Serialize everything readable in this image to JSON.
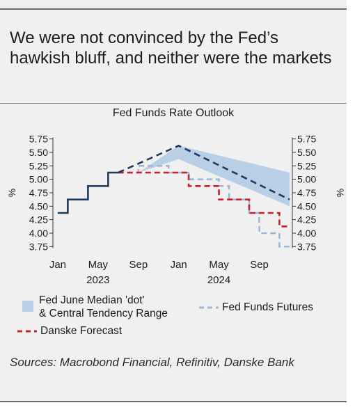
{
  "headline": "We were not convinced by the Fed’s hawkish bluff, and neither were the markets",
  "source_note": "Sources: Macrobond Financial, Refinitiv, Danske Bank",
  "colors": {
    "band": "#b9cfe6",
    "median": "#1f3a5f",
    "futures": "#9fb8d3",
    "danske": "#c8202a",
    "fed_funds": "#1f3a5f"
  },
  "chart_data": {
    "type": "line",
    "title": "Fed Funds Rate Outlook",
    "ylabel": "%",
    "ylim": [
      3.625,
      5.875
    ],
    "yticks": [
      "5.75",
      "5.50",
      "5.25",
      "5.00",
      "4.75",
      "4.50",
      "4.25",
      "4.00",
      "3.75"
    ],
    "xlim": [
      2022.96,
      2024.94
    ],
    "month_ticks": [
      {
        "label": "Jan",
        "x": 2023.0
      },
      {
        "label": "May",
        "x": 2023.333
      },
      {
        "label": "Sep",
        "x": 2023.667
      },
      {
        "label": "Jan",
        "x": 2024.0
      },
      {
        "label": "May",
        "x": 2024.333
      },
      {
        "label": "Sep",
        "x": 2024.667
      }
    ],
    "year_labels": [
      {
        "label": "2023",
        "x": 2023.333
      },
      {
        "label": "2024",
        "x": 2024.333
      }
    ],
    "series": [
      {
        "key": "fed_funds",
        "style": "solid",
        "points": [
          [
            2023.0,
            4.375
          ],
          [
            2023.083,
            4.375
          ],
          [
            2023.083,
            4.625
          ],
          [
            2023.25,
            4.625
          ],
          [
            2023.25,
            4.875
          ],
          [
            2023.417,
            4.875
          ],
          [
            2023.417,
            5.125
          ],
          [
            2023.5,
            5.125
          ]
        ]
      },
      {
        "key": "median",
        "name": "Fed June Median 'dot' & Central Tendency Range",
        "style": "dash",
        "points": [
          [
            2023.5,
            5.125
          ],
          [
            2024.0,
            5.625
          ],
          [
            2024.917,
            4.625
          ]
        ]
      },
      {
        "key": "futures",
        "name": "Fed Funds Futures",
        "style": "dash",
        "points": [
          [
            2023.5,
            5.125
          ],
          [
            2023.667,
            5.125
          ],
          [
            2023.667,
            5.25
          ],
          [
            2023.917,
            5.25
          ],
          [
            2023.917,
            5.125
          ],
          [
            2024.083,
            5.125
          ],
          [
            2024.083,
            5.0
          ],
          [
            2024.333,
            5.0
          ],
          [
            2024.333,
            4.875
          ],
          [
            2024.417,
            4.875
          ],
          [
            2024.417,
            4.625
          ],
          [
            2024.583,
            4.625
          ],
          [
            2024.583,
            4.375
          ],
          [
            2024.667,
            4.375
          ],
          [
            2024.667,
            4.0
          ],
          [
            2024.833,
            4.0
          ],
          [
            2024.833,
            3.75
          ],
          [
            2024.917,
            3.75
          ]
        ]
      },
      {
        "key": "danske",
        "name": "Danske Forecast",
        "style": "dash",
        "points": [
          [
            2023.5,
            5.125
          ],
          [
            2024.083,
            5.125
          ],
          [
            2024.083,
            4.875
          ],
          [
            2024.333,
            4.875
          ],
          [
            2024.333,
            4.625
          ],
          [
            2024.583,
            4.625
          ],
          [
            2024.583,
            4.375
          ],
          [
            2024.833,
            4.375
          ],
          [
            2024.833,
            4.125
          ],
          [
            2024.917,
            4.125
          ]
        ]
      }
    ],
    "band": {
      "key": "band",
      "upper": [
        [
          2023.667,
          5.125
        ],
        [
          2024.0,
          5.625
        ],
        [
          2024.917,
          5.125
        ]
      ],
      "lower": [
        [
          2023.667,
          5.125
        ],
        [
          2024.0,
          5.375
        ],
        [
          2024.917,
          4.5
        ]
      ]
    },
    "legend": [
      {
        "key": "band",
        "text_lines": [
          "Fed June Median 'dot'",
          "& Central Tendency Range"
        ]
      },
      {
        "key": "futures",
        "text_lines": [
          "Fed Funds Futures"
        ]
      },
      {
        "key": "danske",
        "text_lines": [
          "Danske Forecast"
        ]
      }
    ]
  }
}
